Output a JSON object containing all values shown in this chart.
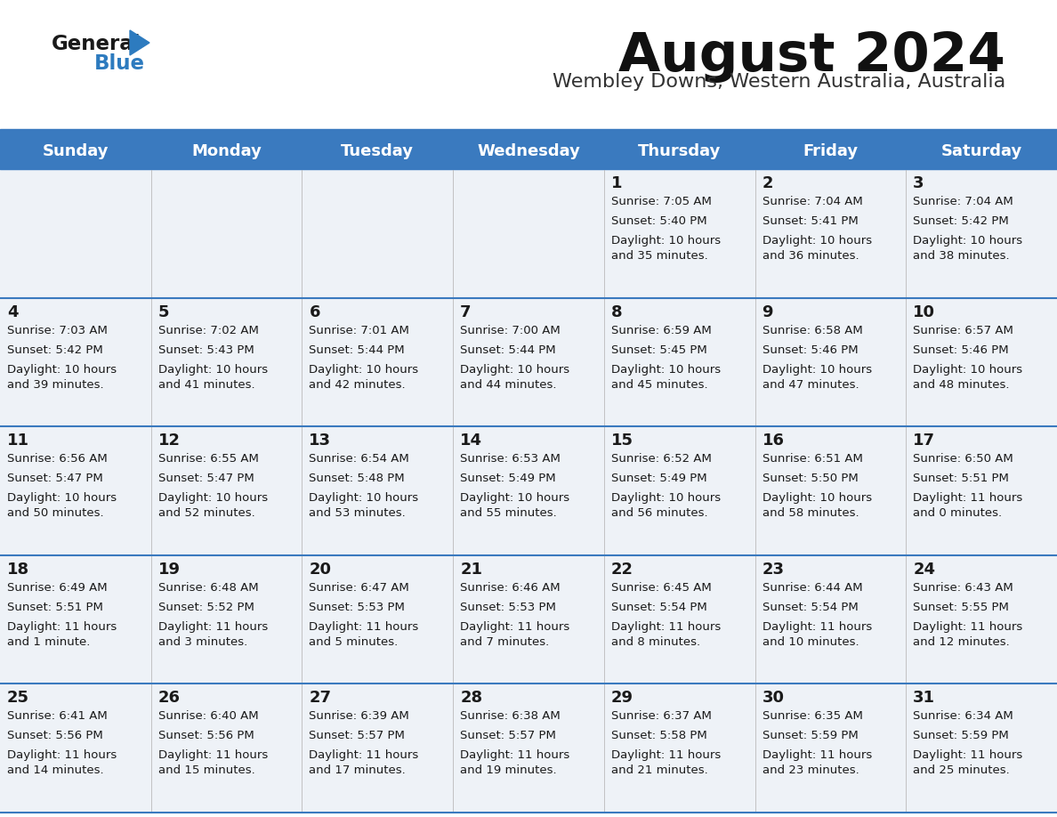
{
  "title": "August 2024",
  "subtitle": "Wembley Downs, Western Australia, Australia",
  "header_bg": "#3a7abf",
  "header_text_color": "#ffffff",
  "cell_bg": "#eef2f7",
  "row_line_color": "#3a7abf",
  "text_color": "#1a1a1a",
  "days_of_week": [
    "Sunday",
    "Monday",
    "Tuesday",
    "Wednesday",
    "Thursday",
    "Friday",
    "Saturday"
  ],
  "calendar": [
    [
      {
        "day": "",
        "sunrise": "",
        "sunset": "",
        "daylight": ""
      },
      {
        "day": "",
        "sunrise": "",
        "sunset": "",
        "daylight": ""
      },
      {
        "day": "",
        "sunrise": "",
        "sunset": "",
        "daylight": ""
      },
      {
        "day": "",
        "sunrise": "",
        "sunset": "",
        "daylight": ""
      },
      {
        "day": "1",
        "sunrise": "Sunrise: 7:05 AM",
        "sunset": "Sunset: 5:40 PM",
        "daylight": "Daylight: 10 hours\nand 35 minutes."
      },
      {
        "day": "2",
        "sunrise": "Sunrise: 7:04 AM",
        "sunset": "Sunset: 5:41 PM",
        "daylight": "Daylight: 10 hours\nand 36 minutes."
      },
      {
        "day": "3",
        "sunrise": "Sunrise: 7:04 AM",
        "sunset": "Sunset: 5:42 PM",
        "daylight": "Daylight: 10 hours\nand 38 minutes."
      }
    ],
    [
      {
        "day": "4",
        "sunrise": "Sunrise: 7:03 AM",
        "sunset": "Sunset: 5:42 PM",
        "daylight": "Daylight: 10 hours\nand 39 minutes."
      },
      {
        "day": "5",
        "sunrise": "Sunrise: 7:02 AM",
        "sunset": "Sunset: 5:43 PM",
        "daylight": "Daylight: 10 hours\nand 41 minutes."
      },
      {
        "day": "6",
        "sunrise": "Sunrise: 7:01 AM",
        "sunset": "Sunset: 5:44 PM",
        "daylight": "Daylight: 10 hours\nand 42 minutes."
      },
      {
        "day": "7",
        "sunrise": "Sunrise: 7:00 AM",
        "sunset": "Sunset: 5:44 PM",
        "daylight": "Daylight: 10 hours\nand 44 minutes."
      },
      {
        "day": "8",
        "sunrise": "Sunrise: 6:59 AM",
        "sunset": "Sunset: 5:45 PM",
        "daylight": "Daylight: 10 hours\nand 45 minutes."
      },
      {
        "day": "9",
        "sunrise": "Sunrise: 6:58 AM",
        "sunset": "Sunset: 5:46 PM",
        "daylight": "Daylight: 10 hours\nand 47 minutes."
      },
      {
        "day": "10",
        "sunrise": "Sunrise: 6:57 AM",
        "sunset": "Sunset: 5:46 PM",
        "daylight": "Daylight: 10 hours\nand 48 minutes."
      }
    ],
    [
      {
        "day": "11",
        "sunrise": "Sunrise: 6:56 AM",
        "sunset": "Sunset: 5:47 PM",
        "daylight": "Daylight: 10 hours\nand 50 minutes."
      },
      {
        "day": "12",
        "sunrise": "Sunrise: 6:55 AM",
        "sunset": "Sunset: 5:47 PM",
        "daylight": "Daylight: 10 hours\nand 52 minutes."
      },
      {
        "day": "13",
        "sunrise": "Sunrise: 6:54 AM",
        "sunset": "Sunset: 5:48 PM",
        "daylight": "Daylight: 10 hours\nand 53 minutes."
      },
      {
        "day": "14",
        "sunrise": "Sunrise: 6:53 AM",
        "sunset": "Sunset: 5:49 PM",
        "daylight": "Daylight: 10 hours\nand 55 minutes."
      },
      {
        "day": "15",
        "sunrise": "Sunrise: 6:52 AM",
        "sunset": "Sunset: 5:49 PM",
        "daylight": "Daylight: 10 hours\nand 56 minutes."
      },
      {
        "day": "16",
        "sunrise": "Sunrise: 6:51 AM",
        "sunset": "Sunset: 5:50 PM",
        "daylight": "Daylight: 10 hours\nand 58 minutes."
      },
      {
        "day": "17",
        "sunrise": "Sunrise: 6:50 AM",
        "sunset": "Sunset: 5:51 PM",
        "daylight": "Daylight: 11 hours\nand 0 minutes."
      }
    ],
    [
      {
        "day": "18",
        "sunrise": "Sunrise: 6:49 AM",
        "sunset": "Sunset: 5:51 PM",
        "daylight": "Daylight: 11 hours\nand 1 minute."
      },
      {
        "day": "19",
        "sunrise": "Sunrise: 6:48 AM",
        "sunset": "Sunset: 5:52 PM",
        "daylight": "Daylight: 11 hours\nand 3 minutes."
      },
      {
        "day": "20",
        "sunrise": "Sunrise: 6:47 AM",
        "sunset": "Sunset: 5:53 PM",
        "daylight": "Daylight: 11 hours\nand 5 minutes."
      },
      {
        "day": "21",
        "sunrise": "Sunrise: 6:46 AM",
        "sunset": "Sunset: 5:53 PM",
        "daylight": "Daylight: 11 hours\nand 7 minutes."
      },
      {
        "day": "22",
        "sunrise": "Sunrise: 6:45 AM",
        "sunset": "Sunset: 5:54 PM",
        "daylight": "Daylight: 11 hours\nand 8 minutes."
      },
      {
        "day": "23",
        "sunrise": "Sunrise: 6:44 AM",
        "sunset": "Sunset: 5:54 PM",
        "daylight": "Daylight: 11 hours\nand 10 minutes."
      },
      {
        "day": "24",
        "sunrise": "Sunrise: 6:43 AM",
        "sunset": "Sunset: 5:55 PM",
        "daylight": "Daylight: 11 hours\nand 12 minutes."
      }
    ],
    [
      {
        "day": "25",
        "sunrise": "Sunrise: 6:41 AM",
        "sunset": "Sunset: 5:56 PM",
        "daylight": "Daylight: 11 hours\nand 14 minutes."
      },
      {
        "day": "26",
        "sunrise": "Sunrise: 6:40 AM",
        "sunset": "Sunset: 5:56 PM",
        "daylight": "Daylight: 11 hours\nand 15 minutes."
      },
      {
        "day": "27",
        "sunrise": "Sunrise: 6:39 AM",
        "sunset": "Sunset: 5:57 PM",
        "daylight": "Daylight: 11 hours\nand 17 minutes."
      },
      {
        "day": "28",
        "sunrise": "Sunrise: 6:38 AM",
        "sunset": "Sunset: 5:57 PM",
        "daylight": "Daylight: 11 hours\nand 19 minutes."
      },
      {
        "day": "29",
        "sunrise": "Sunrise: 6:37 AM",
        "sunset": "Sunset: 5:58 PM",
        "daylight": "Daylight: 11 hours\nand 21 minutes."
      },
      {
        "day": "30",
        "sunrise": "Sunrise: 6:35 AM",
        "sunset": "Sunset: 5:59 PM",
        "daylight": "Daylight: 11 hours\nand 23 minutes."
      },
      {
        "day": "31",
        "sunrise": "Sunrise: 6:34 AM",
        "sunset": "Sunset: 5:59 PM",
        "daylight": "Daylight: 11 hours\nand 25 minutes."
      }
    ]
  ]
}
